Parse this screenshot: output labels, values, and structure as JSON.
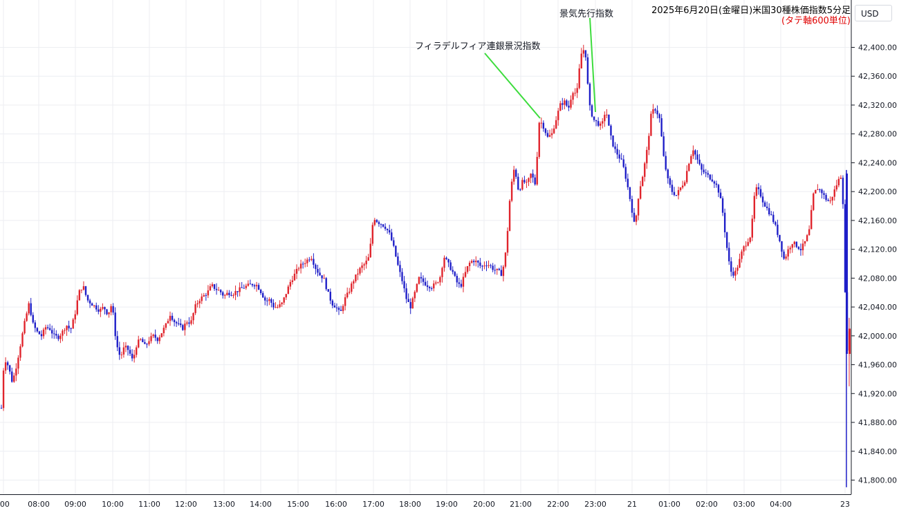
{
  "header": {
    "title": "2025年6月20日(金曜日)米国30種株価指数5分足",
    "subtitle": "(タテ軸600単位)",
    "currency": "USD"
  },
  "annotations": {
    "philly_fed": "フィラデルフィア連銀景況指数",
    "leading_index": "景気先行指数"
  },
  "colors": {
    "up": "#e0242c",
    "down": "#1f1fc8",
    "grid": "#eceef2",
    "annotation_line": "#3ddc3d",
    "title_red": "#e00000"
  },
  "chart_data": {
    "type": "candlestick",
    "title": "2025年6月20日(金曜日)米国30種株価指数5分足",
    "currency": "USD",
    "ylim": [
      41785,
      42435
    ],
    "y_ticks": [
      41800,
      41840,
      41880,
      41920,
      41960,
      42000,
      42040,
      42080,
      42120,
      42160,
      42200,
      42240,
      42280,
      42320,
      42360,
      42400
    ],
    "y_tick_labels": [
      "41,800.00",
      "41,840.00",
      "41,880.00",
      "41,920.00",
      "41,960.00",
      "42,000.00",
      "42,040.00",
      "42,080.00",
      "42,120.00",
      "42,160.00",
      "42,200.00",
      "42,240.00",
      "42,280.00",
      "42,320.00",
      "42,360.00",
      "42,400.00"
    ],
    "x_ticks": [
      ":00",
      "08:00",
      "09:00",
      "10:00",
      "11:00",
      "12:00",
      "13:00",
      "14:00",
      "15:00",
      "16:00",
      "17:00",
      "18:00",
      "19:00",
      "20:00",
      "21:00",
      "22:00",
      "23:00",
      "21",
      "01:00",
      "02:00",
      "03:00",
      "04:00",
      "23"
    ],
    "grid": true,
    "close_path": [
      [
        0,
        41865
      ],
      [
        6,
        41970
      ],
      [
        12,
        41958
      ],
      [
        18,
        41935
      ],
      [
        24,
        41960
      ],
      [
        30,
        41990
      ],
      [
        36,
        42020
      ],
      [
        42,
        42045
      ],
      [
        48,
        42015
      ],
      [
        54,
        42005
      ],
      [
        60,
        42000
      ],
      [
        66,
        42012
      ],
      [
        72,
        42010
      ],
      [
        78,
        42000
      ],
      [
        84,
        41998
      ],
      [
        90,
        42005
      ],
      [
        96,
        42015
      ],
      [
        102,
        42008
      ],
      [
        108,
        42028
      ],
      [
        114,
        42060
      ],
      [
        120,
        42070
      ],
      [
        126,
        42050
      ],
      [
        132,
        42045
      ],
      [
        138,
        42040
      ],
      [
        144,
        42035
      ],
      [
        150,
        42040
      ],
      [
        156,
        42030
      ],
      [
        162,
        42045
      ],
      [
        168,
        41990
      ],
      [
        174,
        41970
      ],
      [
        180,
        41985
      ],
      [
        186,
        41980
      ],
      [
        192,
        41965
      ],
      [
        198,
        41990
      ],
      [
        204,
        41995
      ],
      [
        210,
        41985
      ],
      [
        216,
        41995
      ],
      [
        222,
        42000
      ],
      [
        228,
        41995
      ],
      [
        234,
        42005
      ],
      [
        240,
        42015
      ],
      [
        246,
        42030
      ],
      [
        252,
        42020
      ],
      [
        258,
        42015
      ],
      [
        264,
        42010
      ],
      [
        270,
        42020
      ],
      [
        276,
        42018
      ],
      [
        282,
        42040
      ],
      [
        288,
        42050
      ],
      [
        294,
        42055
      ],
      [
        300,
        42060
      ],
      [
        306,
        42070
      ],
      [
        312,
        42065
      ],
      [
        318,
        42062
      ],
      [
        324,
        42055
      ],
      [
        330,
        42060
      ],
      [
        336,
        42058
      ],
      [
        342,
        42062
      ],
      [
        348,
        42065
      ],
      [
        354,
        42068
      ],
      [
        360,
        42070
      ],
      [
        366,
        42072
      ],
      [
        372,
        42070
      ],
      [
        378,
        42060
      ],
      [
        384,
        42048
      ],
      [
        390,
        42050
      ],
      [
        396,
        42040
      ],
      [
        402,
        42040
      ],
      [
        408,
        42045
      ],
      [
        414,
        42060
      ],
      [
        420,
        42075
      ],
      [
        426,
        42085
      ],
      [
        432,
        42095
      ],
      [
        438,
        42100
      ],
      [
        444,
        42105
      ],
      [
        450,
        42110
      ],
      [
        456,
        42095
      ],
      [
        462,
        42085
      ],
      [
        468,
        42080
      ],
      [
        474,
        42060
      ],
      [
        480,
        42045
      ],
      [
        486,
        42040
      ],
      [
        492,
        42030
      ],
      [
        498,
        42050
      ],
      [
        504,
        42060
      ],
      [
        510,
        42075
      ],
      [
        516,
        42085
      ],
      [
        522,
        42095
      ],
      [
        528,
        42100
      ],
      [
        534,
        42110
      ],
      [
        540,
        42165
      ],
      [
        546,
        42158
      ],
      [
        552,
        42155
      ],
      [
        558,
        42150
      ],
      [
        564,
        42140
      ],
      [
        570,
        42120
      ],
      [
        576,
        42095
      ],
      [
        582,
        42075
      ],
      [
        588,
        42050
      ],
      [
        594,
        42040
      ],
      [
        600,
        42060
      ],
      [
        606,
        42080
      ],
      [
        612,
        42075
      ],
      [
        618,
        42070
      ],
      [
        624,
        42068
      ],
      [
        630,
        42072
      ],
      [
        636,
        42080
      ],
      [
        642,
        42110
      ],
      [
        648,
        42100
      ],
      [
        654,
        42090
      ],
      [
        660,
        42075
      ],
      [
        666,
        42068
      ],
      [
        672,
        42085
      ],
      [
        678,
        42100
      ],
      [
        684,
        42105
      ],
      [
        690,
        42102
      ],
      [
        696,
        42095
      ],
      [
        702,
        42100
      ],
      [
        708,
        42098
      ],
      [
        714,
        42092
      ],
      [
        720,
        42090
      ],
      [
        726,
        42085
      ],
      [
        732,
        42120
      ],
      [
        738,
        42200
      ],
      [
        744,
        42235
      ],
      [
        750,
        42200
      ],
      [
        756,
        42215
      ],
      [
        762,
        42210
      ],
      [
        768,
        42225
      ],
      [
        774,
        42210
      ],
      [
        780,
        42300
      ],
      [
        786,
        42290
      ],
      [
        792,
        42275
      ],
      [
        798,
        42280
      ],
      [
        804,
        42300
      ],
      [
        810,
        42320
      ],
      [
        816,
        42325
      ],
      [
        822,
        42315
      ],
      [
        828,
        42340
      ],
      [
        834,
        42335
      ],
      [
        840,
        42390
      ],
      [
        846,
        42400
      ],
      [
        852,
        42320
      ],
      [
        858,
        42300
      ],
      [
        864,
        42295
      ],
      [
        870,
        42290
      ],
      [
        876,
        42315
      ],
      [
        882,
        42280
      ],
      [
        888,
        42260
      ],
      [
        894,
        42250
      ],
      [
        900,
        42240
      ],
      [
        906,
        42215
      ],
      [
        912,
        42185
      ],
      [
        918,
        42150
      ],
      [
        924,
        42200
      ],
      [
        930,
        42225
      ],
      [
        936,
        42260
      ],
      [
        942,
        42310
      ],
      [
        948,
        42315
      ],
      [
        954,
        42300
      ],
      [
        960,
        42245
      ],
      [
        966,
        42215
      ],
      [
        972,
        42200
      ],
      [
        978,
        42195
      ],
      [
        984,
        42205
      ],
      [
        990,
        42215
      ],
      [
        996,
        42240
      ],
      [
        1002,
        42260
      ],
      [
        1008,
        42245
      ],
      [
        1014,
        42230
      ],
      [
        1020,
        42225
      ],
      [
        1026,
        42220
      ],
      [
        1032,
        42215
      ],
      [
        1038,
        42205
      ],
      [
        1044,
        42180
      ],
      [
        1050,
        42130
      ],
      [
        1056,
        42090
      ],
      [
        1062,
        42085
      ],
      [
        1068,
        42100
      ],
      [
        1074,
        42120
      ],
      [
        1080,
        42130
      ],
      [
        1086,
        42140
      ],
      [
        1092,
        42205
      ],
      [
        1098,
        42200
      ],
      [
        1104,
        42185
      ],
      [
        1110,
        42175
      ],
      [
        1116,
        42165
      ],
      [
        1122,
        42150
      ],
      [
        1128,
        42130
      ],
      [
        1134,
        42105
      ],
      [
        1140,
        42120
      ],
      [
        1146,
        42130
      ],
      [
        1152,
        42125
      ],
      [
        1158,
        42120
      ],
      [
        1164,
        42130
      ],
      [
        1170,
        42145
      ],
      [
        1176,
        42195
      ],
      [
        1182,
        42205
      ],
      [
        1188,
        42200
      ],
      [
        1194,
        42190
      ],
      [
        1200,
        42185
      ],
      [
        1206,
        42200
      ],
      [
        1212,
        42215
      ],
      [
        1218,
        42225
      ],
      [
        1224,
        41975
      ],
      [
        1229,
        42010
      ]
    ]
  }
}
